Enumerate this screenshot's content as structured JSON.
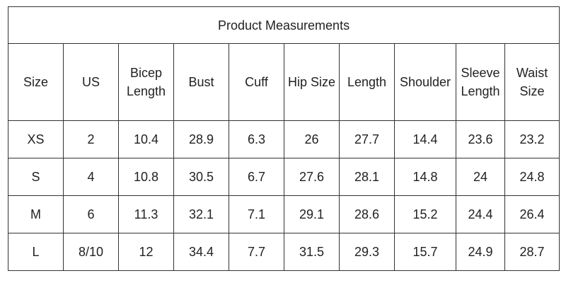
{
  "table": {
    "title": "Product Measurements",
    "headers": [
      "Size",
      "US",
      "Bicep Length",
      "Bust",
      "Cuff",
      "Hip Size",
      "Length",
      "Shoulder",
      "Sleeve Length",
      "Waist Size"
    ],
    "rows": [
      [
        "XS",
        "2",
        "10.4",
        "28.9",
        "6.3",
        "26",
        "27.7",
        "14.4",
        "23.6",
        "23.2"
      ],
      [
        "S",
        "4",
        "10.8",
        "30.5",
        "6.7",
        "27.6",
        "28.1",
        "14.8",
        "24",
        "24.8"
      ],
      [
        "M",
        "6",
        "11.3",
        "32.1",
        "7.1",
        "29.1",
        "28.6",
        "15.2",
        "24.4",
        "26.4"
      ],
      [
        "L",
        "8/10",
        "12",
        "34.4",
        "7.7",
        "31.5",
        "29.3",
        "15.7",
        "24.9",
        "28.7"
      ]
    ]
  }
}
